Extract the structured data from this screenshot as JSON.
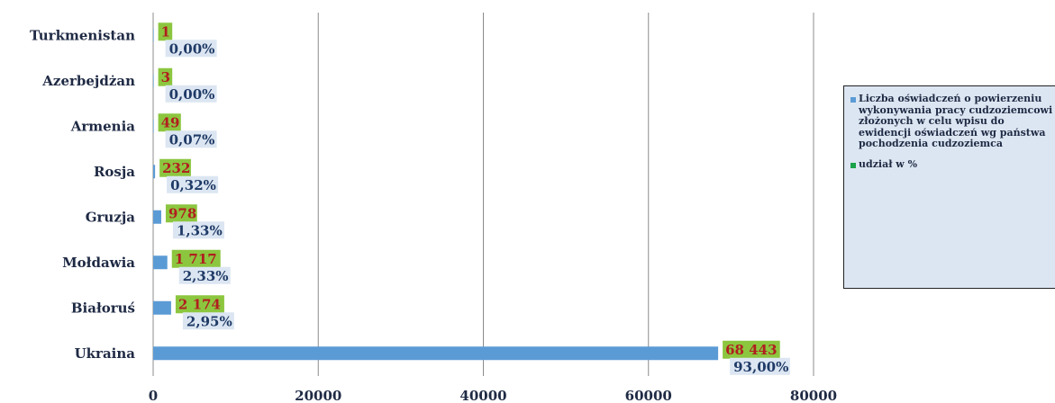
{
  "chart_data": {
    "type": "bar",
    "orientation": "horizontal",
    "categories": [
      "Turkmenistan",
      "Azerbejdżan",
      "Armenia",
      "Rosja",
      "Gruzja",
      "Mołdawia",
      "Białoruś",
      "Ukraina"
    ],
    "series": [
      {
        "name": "Liczba  oświadczeń o powierzeniu wykonywania pracy cudzoziemcowi złożonych w celu wpisu do ewidencji oświadczeń wg państwa pochodzenia cudzoziemca",
        "values": [
          1,
          3,
          49,
          232,
          978,
          1717,
          2174,
          68443
        ],
        "value_labels": [
          "1",
          "3",
          "49",
          "232",
          "978",
          "1 717",
          "2 174",
          "68 443"
        ],
        "color": "#5b9bd5"
      },
      {
        "name": "udział w %",
        "values": [
          0.0,
          0.0,
          0.07,
          0.32,
          1.33,
          2.33,
          2.95,
          93.0
        ],
        "value_labels": [
          "0,00%",
          "0,00%",
          "0,07%",
          "0,32%",
          "1,33%",
          "2,33%",
          "2,95%",
          "93,00%"
        ],
        "color": "#1aa34a"
      }
    ],
    "xlim": [
      0,
      80000
    ],
    "xticks": [
      "0",
      "20000",
      "40000",
      "60000",
      "80000"
    ],
    "grid": true,
    "legend": "right",
    "colors": {
      "value_label_box": "#8cc63f",
      "value_label_text": "#b01e1e",
      "pct_label_box": "#dce6f2",
      "pct_label_text": "#1f3a66"
    }
  }
}
